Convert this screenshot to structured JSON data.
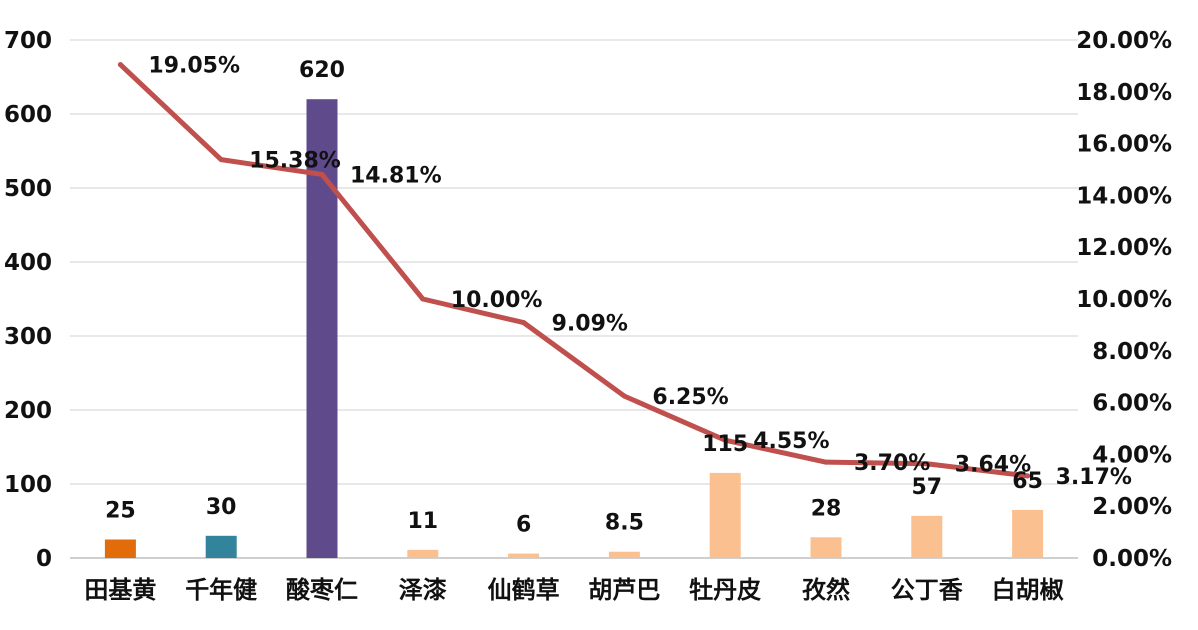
{
  "chart_data": {
    "type": "bar",
    "categories": [
      "田基黄",
      "千年健",
      "酸枣仁",
      "泽漆",
      "仙鹤草",
      "胡芦巴",
      "牡丹皮",
      "孜然",
      "公丁香",
      "白胡椒"
    ],
    "series": [
      {
        "type": "bar",
        "axis": "left",
        "values": [
          25,
          30,
          620,
          11,
          6,
          8.5,
          115,
          28,
          57,
          65
        ],
        "value_labels": [
          "25",
          "30",
          "620",
          "11",
          "6",
          "8.5",
          "115",
          "28",
          "57",
          "65"
        ],
        "colors": [
          "#e36c0a",
          "#31849b",
          "#5f4b8b",
          "#fac090",
          "#fac090",
          "#fac090",
          "#fac090",
          "#fac090",
          "#fac090",
          "#fac090"
        ]
      },
      {
        "type": "line",
        "axis": "right",
        "values": [
          19.05,
          15.38,
          14.81,
          10.0,
          9.09,
          6.25,
          4.55,
          3.7,
          3.64,
          3.17
        ],
        "value_labels": [
          "19.05%",
          "15.38%",
          "14.81%",
          "10.00%",
          "9.09%",
          "6.25%",
          "4.55%",
          "3.70%",
          "3.64%",
          "3.17%"
        ],
        "color": "#c0504d"
      }
    ],
    "y_left": {
      "min": 0,
      "max": 700,
      "ticks": [
        "0",
        "100",
        "200",
        "300",
        "400",
        "500",
        "600",
        "700"
      ]
    },
    "y_right": {
      "min": 0,
      "max": 20,
      "ticks": [
        "0.00%",
        "2.00%",
        "4.00%",
        "6.00%",
        "8.00%",
        "10.00%",
        "12.00%",
        "14.00%",
        "16.00%",
        "18.00%",
        "20.00%"
      ]
    },
    "grid": true,
    "legend": "none"
  }
}
